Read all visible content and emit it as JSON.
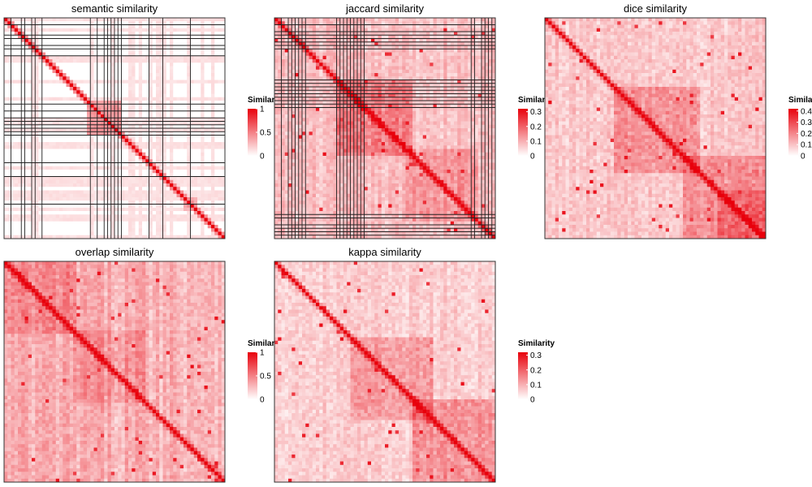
{
  "figure": {
    "colors": {
      "low": "#ffffff",
      "high": "#e8000b",
      "frame": "#333333",
      "separator": "#222222"
    }
  },
  "chart_data": [
    {
      "type": "heatmap",
      "title": "semantic similarity",
      "legend": {
        "title": "Similarity",
        "ticks": [
          "1",
          "0.5",
          "0"
        ],
        "tick_values": [
          1,
          0.5,
          0
        ],
        "range": [
          0,
          1
        ],
        "placement": "right"
      },
      "diagonal_max": true,
      "n": 64,
      "separators": [
        2,
        5,
        6,
        8,
        9,
        11,
        25,
        27,
        29,
        30,
        31,
        32,
        33,
        34,
        42,
        46,
        54
      ]
    },
    {
      "type": "heatmap",
      "title": "jaccard similarity",
      "legend": {
        "title": "Similarity",
        "ticks": [
          "0.3",
          "0.2",
          "0.1",
          "0"
        ],
        "tick_values": [
          0.3,
          0.2,
          0.1,
          0
        ],
        "range": [
          0,
          0.32
        ],
        "placement": "right"
      },
      "diagonal_max": true,
      "n": 64,
      "separators": [
        2,
        4,
        5,
        6,
        7,
        8,
        9,
        18,
        19,
        20,
        21,
        22,
        23,
        24,
        25,
        26,
        57,
        58,
        60,
        61,
        62,
        63
      ]
    },
    {
      "type": "heatmap",
      "title": "dice similarity",
      "legend": {
        "title": "Similarity",
        "ticks": [
          "0.4",
          "0.3",
          "0.2",
          "0.1",
          "0"
        ],
        "tick_values": [
          0.4,
          0.3,
          0.2,
          0.1,
          0
        ],
        "range": [
          0,
          0.42
        ],
        "placement": "right"
      },
      "diagonal_max": true,
      "n": 64,
      "separators": []
    },
    {
      "type": "heatmap",
      "title": "overlap similarity",
      "legend": {
        "title": "Similarity",
        "ticks": [
          "1",
          "0.5",
          "0"
        ],
        "tick_values": [
          1,
          0.5,
          0
        ],
        "range": [
          0,
          1
        ],
        "placement": "right"
      },
      "diagonal_max": true,
      "n": 64,
      "separators": []
    },
    {
      "type": "heatmap",
      "title": "kappa similarity",
      "legend": {
        "title": "Similarity",
        "ticks": [
          "0.3",
          "0.2",
          "0.1",
          "0"
        ],
        "tick_values": [
          0.3,
          0.2,
          0.1,
          0
        ],
        "range": [
          0,
          0.32
        ],
        "placement": "right"
      },
      "diagonal_max": true,
      "n": 64,
      "separators": []
    }
  ]
}
